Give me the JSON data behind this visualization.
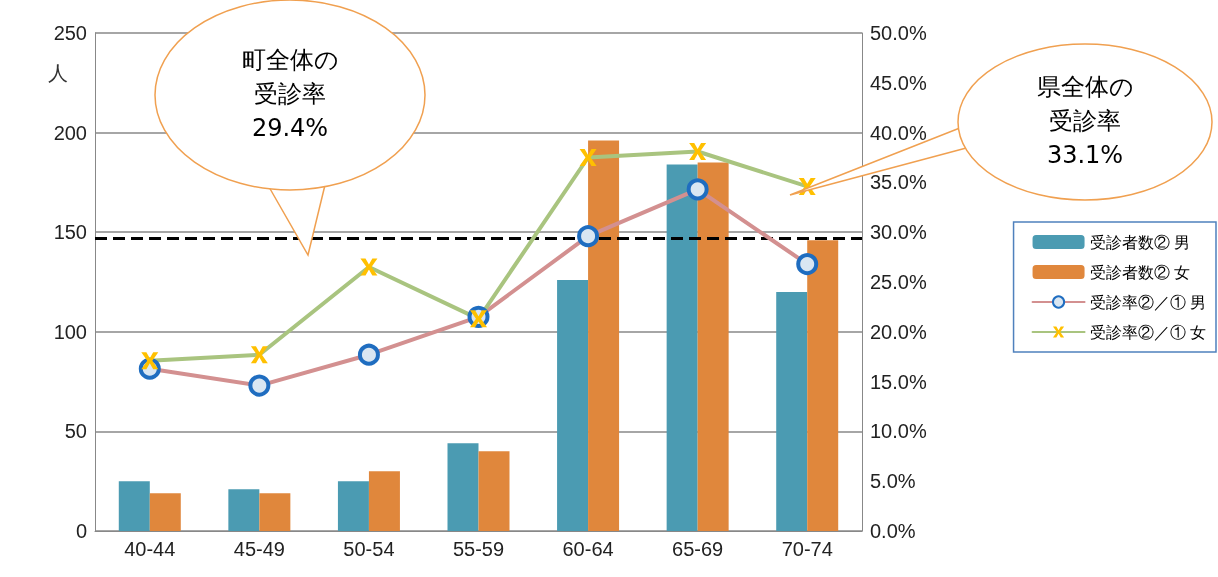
{
  "chart_data": {
    "type": "bar",
    "ylabel": "人",
    "categories": [
      "40-44",
      "45-49",
      "50-54",
      "55-59",
      "60-64",
      "65-69",
      "70-74"
    ],
    "series": [
      {
        "name": "受診者数② 男",
        "color": "#4b9bb2",
        "values": [
          25,
          21,
          25,
          44,
          126,
          184,
          120
        ]
      },
      {
        "name": "受診者数② 女",
        "color": "#e0873c",
        "values": [
          19,
          19,
          30,
          40,
          196,
          185,
          146
        ]
      },
      {
        "name": "受診率②／① 男",
        "type": "line",
        "axis": "y2",
        "marker": "circle",
        "color": "#d39090",
        "values": [
          16.3,
          14.6,
          17.7,
          21.5,
          29.6,
          34.3,
          26.8
        ]
      },
      {
        "name": "受診率②／① 女",
        "type": "line",
        "axis": "y2",
        "marker": "cross",
        "color": "#a9c47f",
        "values": [
          17.1,
          17.7,
          26.5,
          21.3,
          37.5,
          38.1,
          34.6
        ]
      }
    ],
    "ylim": [
      0,
      250
    ],
    "yticks": [
      0,
      50,
      100,
      150,
      200,
      250
    ],
    "y2lim": [
      0,
      50
    ],
    "y2ticks": [
      {
        "value": 0,
        "label": "0.0%"
      },
      {
        "value": 5,
        "label": "5.0%"
      },
      {
        "value": 10,
        "label": "10.0%"
      },
      {
        "value": 15,
        "label": "15.0%"
      },
      {
        "value": 20,
        "label": "20.0%"
      },
      {
        "value": 25,
        "label": "25.0%"
      },
      {
        "value": 30,
        "label": "30.0%"
      },
      {
        "value": 35,
        "label": "35.0%"
      },
      {
        "value": 40,
        "label": "40.0%"
      },
      {
        "value": 45,
        "label": "45.0%"
      },
      {
        "value": 50,
        "label": "50.0%"
      }
    ],
    "ref_lines": [
      {
        "axis": "y2",
        "value": 29.4,
        "color": "#000000",
        "line_style": "dashed"
      }
    ],
    "annotations": [
      "町全体の受診率29.4%",
      "県全体の受診率33.1%"
    ],
    "grid": "y",
    "legend": "right"
  }
}
